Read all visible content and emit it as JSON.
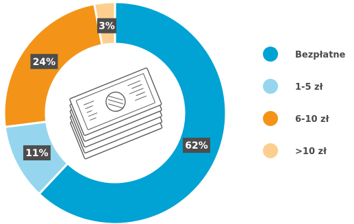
{
  "chart_data": {
    "type": "pie",
    "variant": "donut",
    "title": "",
    "categories": [
      "Bezpłatne",
      "1-5 zł",
      "6-10 zł",
      ">10 zł"
    ],
    "values": [
      62,
      11,
      24,
      3
    ],
    "labels": [
      "62%",
      "11%",
      "24%",
      "3%"
    ],
    "colors": [
      "#00a3d3",
      "#95d6ee",
      "#f39418",
      "#fccf8f"
    ],
    "legend_position": "right",
    "center_icon": "money-stack-icon"
  }
}
